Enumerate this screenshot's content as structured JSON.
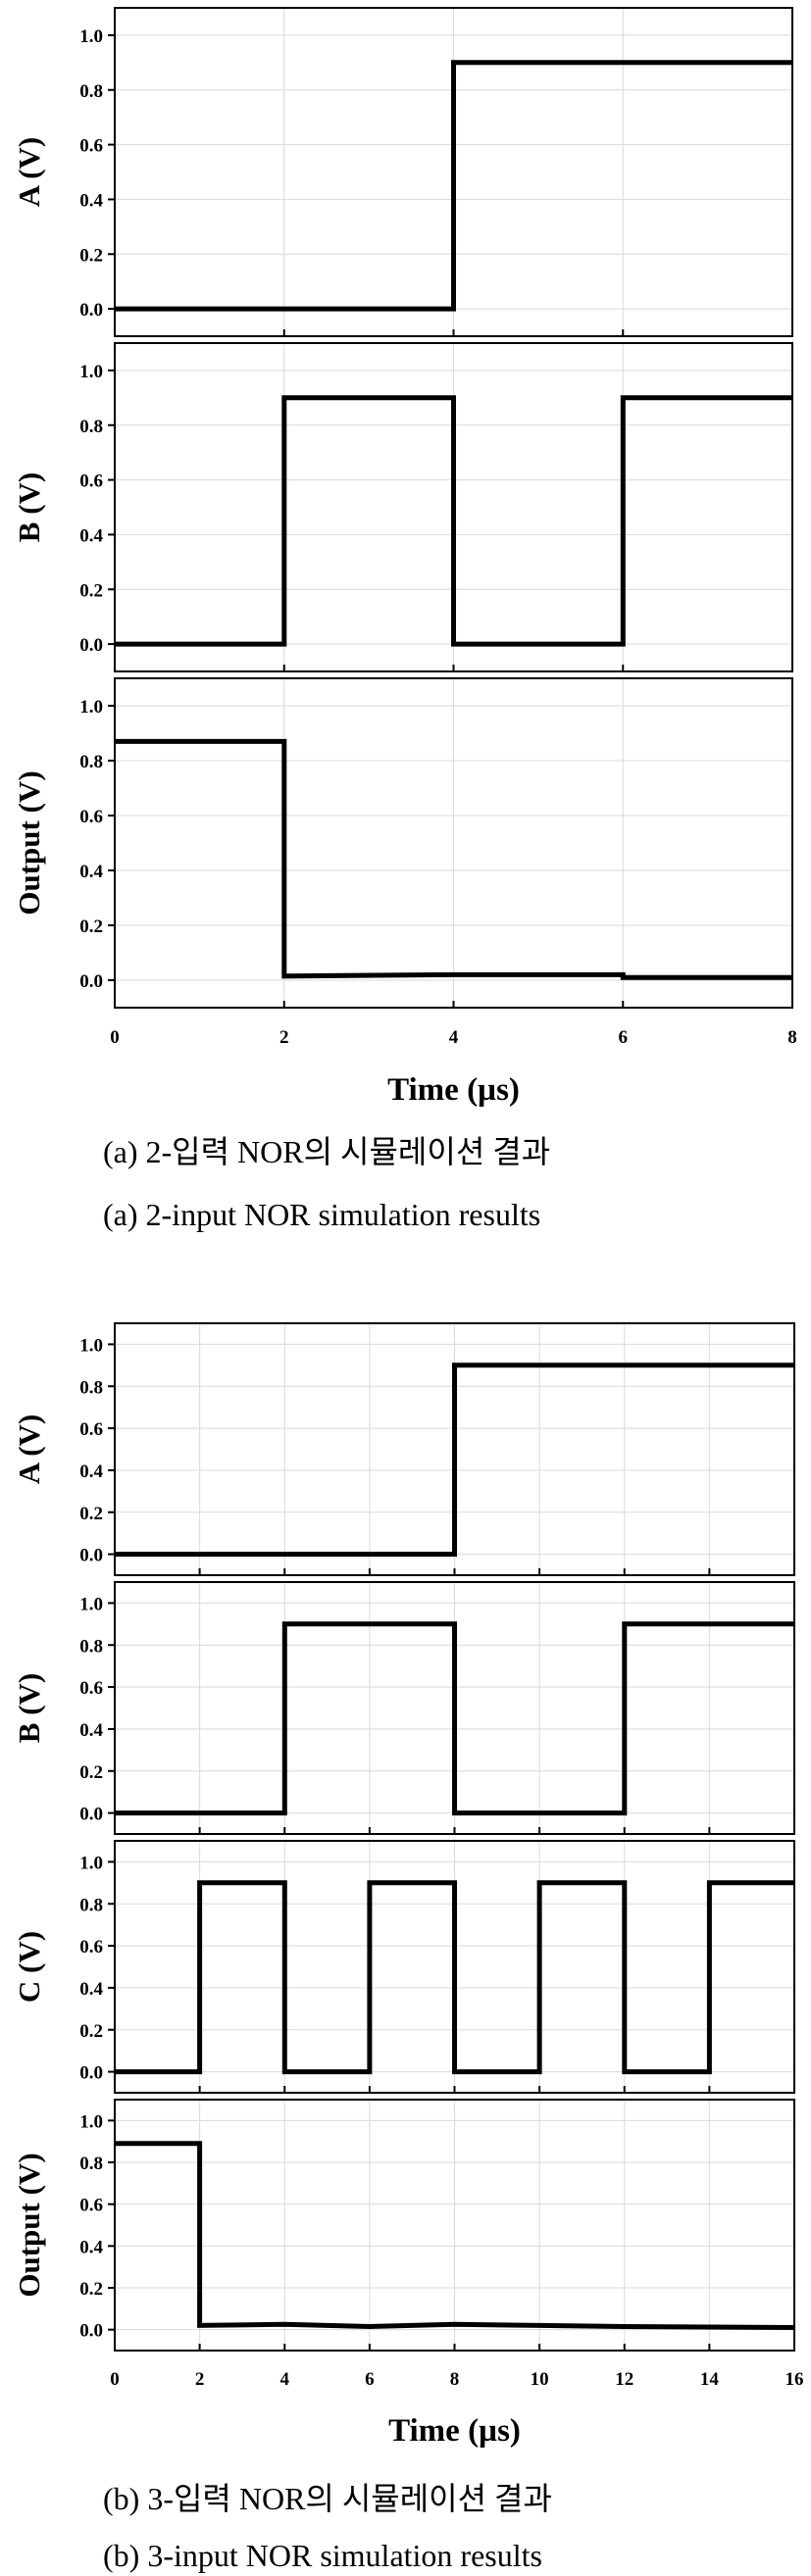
{
  "colors": {
    "trace": "#000000",
    "grid": "#d9d9d9",
    "axis": "#000000",
    "background": "#ffffff"
  },
  "captions": {
    "a_ko": "(a)  2-입력  NOR의  시뮬레이션  결과",
    "a_en": "(a)  2-input  NOR  simulation  results",
    "b_ko": "(b)  3-입력  NOR의  시뮬레이션  결과",
    "b_en": "(b)  3-input  NOR  simulation  results"
  },
  "chart_data": [
    {
      "type": "line",
      "title": "",
      "xlabel": "Time (µs)",
      "xlim": [
        0,
        8
      ],
      "xticks": [
        0,
        2,
        4,
        6,
        8
      ],
      "grid": true,
      "panels": [
        {
          "ylabel": "A (V)",
          "ylim": [
            -0.1,
            1.1
          ],
          "yticks": [
            0.0,
            0.2,
            0.4,
            0.6,
            0.8,
            1.0
          ],
          "points": [
            [
              0,
              0
            ],
            [
              4,
              0
            ],
            [
              4,
              0.9
            ],
            [
              8,
              0.9
            ]
          ]
        },
        {
          "ylabel": "B (V)",
          "ylim": [
            -0.1,
            1.1
          ],
          "yticks": [
            0.0,
            0.2,
            0.4,
            0.6,
            0.8,
            1.0
          ],
          "points": [
            [
              0,
              0
            ],
            [
              2,
              0
            ],
            [
              2,
              0.9
            ],
            [
              4,
              0.9
            ],
            [
              4,
              0
            ],
            [
              6,
              0
            ],
            [
              6,
              0.9
            ],
            [
              8,
              0.9
            ]
          ]
        },
        {
          "ylabel": "Output (V)",
          "ylim": [
            -0.1,
            1.1
          ],
          "yticks": [
            0.0,
            0.2,
            0.4,
            0.6,
            0.8,
            1.0
          ],
          "points": [
            [
              0,
              0.87
            ],
            [
              2,
              0.87
            ],
            [
              2,
              0.015
            ],
            [
              4,
              0.02
            ],
            [
              6,
              0.02
            ],
            [
              6,
              0.01
            ],
            [
              8,
              0.01
            ]
          ]
        }
      ]
    },
    {
      "type": "line",
      "title": "",
      "xlabel": "Time (µs)",
      "xlim": [
        0,
        16
      ],
      "xticks": [
        0,
        2,
        4,
        6,
        8,
        10,
        12,
        14,
        16
      ],
      "grid": true,
      "panels": [
        {
          "ylabel": "A (V)",
          "ylim": [
            -0.1,
            1.1
          ],
          "yticks": [
            0.0,
            0.2,
            0.4,
            0.6,
            0.8,
            1.0
          ],
          "points": [
            [
              0,
              0
            ],
            [
              8,
              0
            ],
            [
              8,
              0.9
            ],
            [
              16,
              0.9
            ]
          ]
        },
        {
          "ylabel": "B (V)",
          "ylim": [
            -0.1,
            1.1
          ],
          "yticks": [
            0.0,
            0.2,
            0.4,
            0.6,
            0.8,
            1.0
          ],
          "points": [
            [
              0,
              0
            ],
            [
              4,
              0
            ],
            [
              4,
              0.9
            ],
            [
              8,
              0.9
            ],
            [
              8,
              0
            ],
            [
              12,
              0
            ],
            [
              12,
              0.9
            ],
            [
              16,
              0.9
            ]
          ]
        },
        {
          "ylabel": "C (V)",
          "ylim": [
            -0.1,
            1.1
          ],
          "yticks": [
            0.0,
            0.2,
            0.4,
            0.6,
            0.8,
            1.0
          ],
          "points": [
            [
              0,
              0
            ],
            [
              2,
              0
            ],
            [
              2,
              0.9
            ],
            [
              4,
              0.9
            ],
            [
              4,
              0
            ],
            [
              6,
              0
            ],
            [
              6,
              0.9
            ],
            [
              8,
              0.9
            ],
            [
              8,
              0
            ],
            [
              10,
              0
            ],
            [
              10,
              0.9
            ],
            [
              12,
              0.9
            ],
            [
              12,
              0
            ],
            [
              14,
              0
            ],
            [
              14,
              0.9
            ],
            [
              16,
              0.9
            ]
          ]
        },
        {
          "ylabel": "Output (V)",
          "ylim": [
            -0.1,
            1.1
          ],
          "yticks": [
            0.0,
            0.2,
            0.4,
            0.6,
            0.8,
            1.0
          ],
          "points": [
            [
              0,
              0.89
            ],
            [
              2,
              0.89
            ],
            [
              2,
              0.02
            ],
            [
              4,
              0.025
            ],
            [
              6,
              0.015
            ],
            [
              8,
              0.025
            ],
            [
              10,
              0.02
            ],
            [
              12,
              0.015
            ],
            [
              16,
              0.01
            ]
          ]
        }
      ]
    }
  ]
}
